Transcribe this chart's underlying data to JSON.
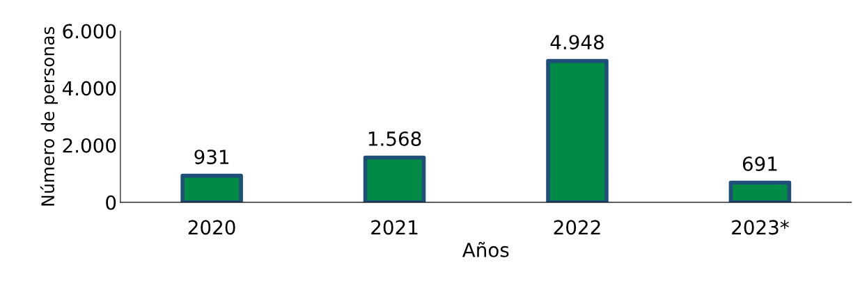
{
  "chart_data": {
    "type": "bar",
    "xlabel": "Años",
    "ylabel": "Número de personas",
    "categories": [
      "2020",
      "2021",
      "2022",
      "2023*"
    ],
    "values": [
      931,
      1568,
      4948,
      691
    ],
    "value_labels": [
      "931",
      "1.568",
      "4.948",
      "691"
    ],
    "color": "#008a45",
    "ylim": [
      0,
      6000
    ],
    "yticks": [
      0,
      {
        "value": 2000,
        "label": "2.000"
      },
      {
        "value": 4000,
        "label": "4.000"
      },
      {
        "value": 6000,
        "label": "6.000"
      }
    ],
    "grid": false,
    "legend": false
  }
}
